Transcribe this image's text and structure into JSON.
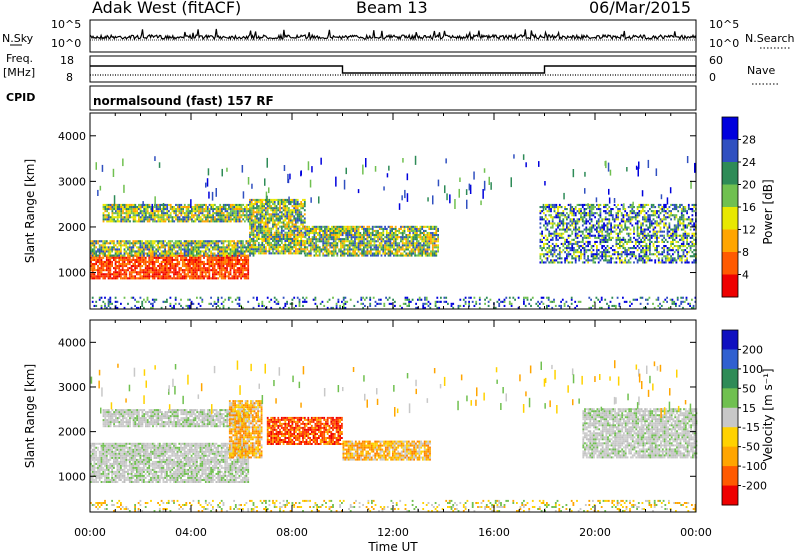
{
  "header": {
    "station": "Adak West (fitACF)",
    "beam": "Beam 13",
    "date": "06/Mar/2015"
  },
  "top_panels": {
    "nsky": {
      "label": "N.Sky",
      "left_ticks": [
        "10^5",
        "10^0"
      ],
      "right_label": "N.Search",
      "right_ticks": [
        "10^5",
        "10^0"
      ]
    },
    "freq": {
      "label_line1": "Freq.",
      "label_line2": "[MHz]",
      "left_ticks": [
        "18",
        "8"
      ],
      "right_label": "Nave",
      "right_ticks": [
        "60",
        "0"
      ],
      "step_series": {
        "x_hours": [
          0,
          10,
          10,
          18,
          18,
          24
        ],
        "level": [
          "high",
          "high",
          "low",
          "low",
          "high",
          "high"
        ]
      }
    },
    "cpid": {
      "label": "CPID",
      "program": "normalsound (fast) 157 RF"
    }
  },
  "chart_data": [
    {
      "type": "heatmap",
      "name": "power-panel",
      "ylabel": "Slant Range [km]",
      "xlabel": "",
      "yticks": [
        1000,
        2000,
        3000,
        4000
      ],
      "ylim": [
        200,
        4500
      ],
      "xlim_hours": [
        0,
        24
      ],
      "colorbar": {
        "label": "Power [dB]",
        "ticks": [
          "4",
          "8",
          "12",
          "16",
          "20",
          "24",
          "28"
        ],
        "colors": [
          "#0000dd",
          "#3050c0",
          "#2e8b57",
          "#70c050",
          "#e8e800",
          "#ffa500",
          "#ff5a00",
          "#ee0000"
        ]
      },
      "echo_regions": [
        {
          "t0": 0.0,
          "t1": 6.3,
          "r0": 850,
          "r1": 1350,
          "level": "strong"
        },
        {
          "t0": 0.0,
          "t1": 6.5,
          "r0": 1350,
          "r1": 1700,
          "level": "medium"
        },
        {
          "t0": 0.5,
          "t1": 6.3,
          "r0": 2100,
          "r1": 2500,
          "level": "medium"
        },
        {
          "t0": 6.3,
          "t1": 8.5,
          "r0": 1400,
          "r1": 2600,
          "level": "medium"
        },
        {
          "t0": 8.5,
          "t1": 13.8,
          "r0": 1350,
          "r1": 2000,
          "level": "medium"
        },
        {
          "t0": 17.8,
          "t1": 24.0,
          "r0": 1200,
          "r1": 2500,
          "level": "weak"
        },
        {
          "t0": 0.0,
          "t1": 24.0,
          "r0": 200,
          "r1": 450,
          "level": "noise"
        }
      ]
    },
    {
      "type": "heatmap",
      "name": "velocity-panel",
      "ylabel": "Slant Range [km]",
      "xlabel": "Time UT",
      "xticks": [
        "00:00",
        "04:00",
        "08:00",
        "12:00",
        "16:00",
        "20:00",
        "00:00"
      ],
      "yticks": [
        1000,
        2000,
        3000,
        4000
      ],
      "ylim": [
        200,
        4500
      ],
      "xlim_hours": [
        0,
        24
      ],
      "colorbar": {
        "label": "Velocity [m s⁻¹]",
        "ticks": [
          "200",
          "100",
          "50",
          "15",
          "-15",
          "-50",
          "-100",
          "-200"
        ],
        "colors": [
          "#1010c0",
          "#3060d0",
          "#2e8b57",
          "#70c050",
          "#c8c8c8",
          "#ffd200",
          "#ffa500",
          "#ff5a00",
          "#ee0000"
        ]
      },
      "echo_regions": [
        {
          "t0": 0.0,
          "t1": 6.3,
          "r0": 850,
          "r1": 1750,
          "level": "ground"
        },
        {
          "t0": 0.5,
          "t1": 6.3,
          "r0": 2100,
          "r1": 2500,
          "level": "ground"
        },
        {
          "t0": 5.5,
          "t1": 6.8,
          "r0": 1400,
          "r1": 2700,
          "level": "orange"
        },
        {
          "t0": 7.0,
          "t1": 10.0,
          "r0": 1700,
          "r1": 2300,
          "level": "red"
        },
        {
          "t0": 10.0,
          "t1": 13.5,
          "r0": 1350,
          "r1": 1800,
          "level": "orange"
        },
        {
          "t0": 19.5,
          "t1": 24.0,
          "r0": 1400,
          "r1": 2500,
          "level": "ground"
        },
        {
          "t0": 0.0,
          "t1": 24.0,
          "r0": 200,
          "r1": 450,
          "level": "noise"
        }
      ]
    }
  ]
}
